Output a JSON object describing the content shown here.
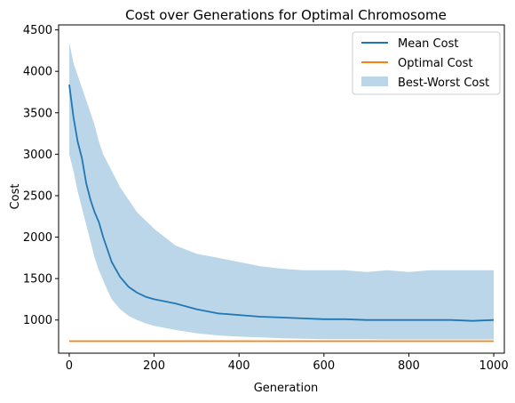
{
  "chart_data": {
    "type": "line",
    "title": "Cost over Generations for Optimal Chromosome",
    "xlabel": "Generation",
    "ylabel": "Cost",
    "xlim": [
      -25,
      1025
    ],
    "ylim": [
      600,
      4560
    ],
    "xticks": [
      0,
      200,
      400,
      600,
      800,
      1000
    ],
    "yticks": [
      1000,
      1500,
      2000,
      2500,
      3000,
      3500,
      4000,
      4500
    ],
    "grid": false,
    "legend_position": "top-right",
    "x": [
      0,
      10,
      20,
      30,
      40,
      50,
      60,
      70,
      80,
      90,
      100,
      120,
      140,
      160,
      180,
      200,
      250,
      300,
      350,
      400,
      450,
      500,
      550,
      600,
      650,
      700,
      750,
      800,
      850,
      900,
      950,
      1000
    ],
    "series": [
      {
        "name": "Mean Cost",
        "kind": "line",
        "color": "#1f77b4",
        "values": [
          3840,
          3450,
          3150,
          2950,
          2650,
          2450,
          2300,
          2180,
          2000,
          1850,
          1700,
          1520,
          1400,
          1330,
          1280,
          1250,
          1200,
          1130,
          1080,
          1060,
          1040,
          1030,
          1020,
          1010,
          1010,
          1000,
          1000,
          1000,
          1000,
          1000,
          990,
          1000
        ]
      },
      {
        "name": "Optimal Cost",
        "kind": "line",
        "color": "#ff7f0e",
        "values": [
          745,
          745,
          745,
          745,
          745,
          745,
          745,
          745,
          745,
          745,
          745,
          745,
          745,
          745,
          745,
          745,
          745,
          745,
          745,
          745,
          745,
          745,
          745,
          745,
          745,
          745,
          745,
          745,
          745,
          745,
          745,
          745
        ]
      },
      {
        "name": "Best-Worst Cost",
        "kind": "band",
        "color": "#1f77b4",
        "upper": [
          4350,
          4100,
          3950,
          3800,
          3650,
          3500,
          3350,
          3150,
          3000,
          2900,
          2800,
          2600,
          2450,
          2300,
          2200,
          2100,
          1900,
          1800,
          1750,
          1700,
          1650,
          1620,
          1600,
          1600,
          1600,
          1580,
          1600,
          1580,
          1600,
          1600,
          1600,
          1600
        ],
        "lower": [
          3000,
          2800,
          2550,
          2350,
          2150,
          1950,
          1750,
          1600,
          1480,
          1360,
          1250,
          1130,
          1050,
          1000,
          960,
          930,
          880,
          840,
          815,
          800,
          790,
          780,
          775,
          770,
          770,
          768,
          765,
          765,
          765,
          765,
          765,
          765
        ]
      }
    ]
  }
}
